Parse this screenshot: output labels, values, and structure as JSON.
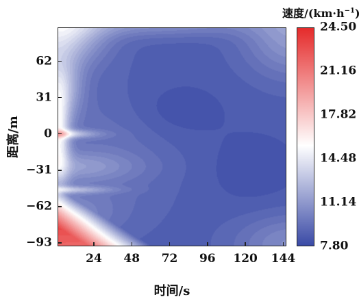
{
  "chart_data": {
    "type": "heatmap",
    "title": "",
    "xlabel": "时间/s",
    "ylabel": "距离/m",
    "x_ticks": [
      24,
      48,
      72,
      96,
      120,
      144
    ],
    "y_ticks": [
      62,
      31,
      0,
      -31,
      -62,
      -93
    ],
    "y_tick_labels": [
      "62",
      "31",
      "0",
      "−31",
      "−62",
      "−93"
    ],
    "xlim": [
      1,
      146
    ],
    "ylim": [
      -96,
      91
    ],
    "colorbar": {
      "title_main": "速度/(km·h",
      "title_sup": "−1",
      "title_end": ")",
      "ticks": [
        24.5,
        21.16,
        17.82,
        14.48,
        11.14,
        7.8
      ],
      "tick_labels": [
        "24.50",
        "21.16",
        "17.82",
        "14.48",
        "11.14",
        "7.80"
      ],
      "range": [
        7.8,
        24.5
      ],
      "colors": [
        "#3a4aa6",
        "#ffffff",
        "#e52b2b"
      ]
    },
    "grid": false,
    "legend": "right"
  }
}
